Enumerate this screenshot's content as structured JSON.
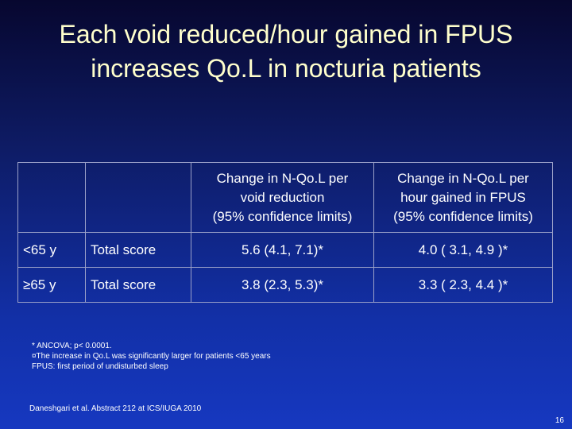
{
  "slide": {
    "title_line1": "Each void reduced/hour gained in FPUS",
    "title_line2": "increases Qo.L in nocturia patients"
  },
  "table": {
    "header": {
      "age": "",
      "measure": "",
      "void_reduction": [
        "Change in N-Qo.L per",
        "void reduction",
        "(95% confidence limits)"
      ],
      "hour_gained": [
        "Change in N-Qo.L per",
        "hour gained in FPUS",
        "(95% confidence limits)"
      ]
    },
    "rows": [
      {
        "age": "<65 y",
        "measure": "Total score",
        "void_reduction": "5.6 (4.1, 7.1)*",
        "hour_gained": "4.0 ( 3.1, 4.9 )*"
      },
      {
        "age": "≥65 y",
        "measure": "Total score",
        "void_reduction": "3.8 (2.3, 5.3)*",
        "hour_gained": "3.3 ( 2.3, 4.4 )*"
      }
    ]
  },
  "footnotes": [
    "* ANCOVA; p< 0.0001.",
    "¤The increase in Qo.L was significantly larger for patients <65 years",
    "FPUS: first period of undisturbed sleep"
  ],
  "reference": "Daneshgari et al. Abstract 212 at ICS/IUGA 2010",
  "page_number": "16"
}
